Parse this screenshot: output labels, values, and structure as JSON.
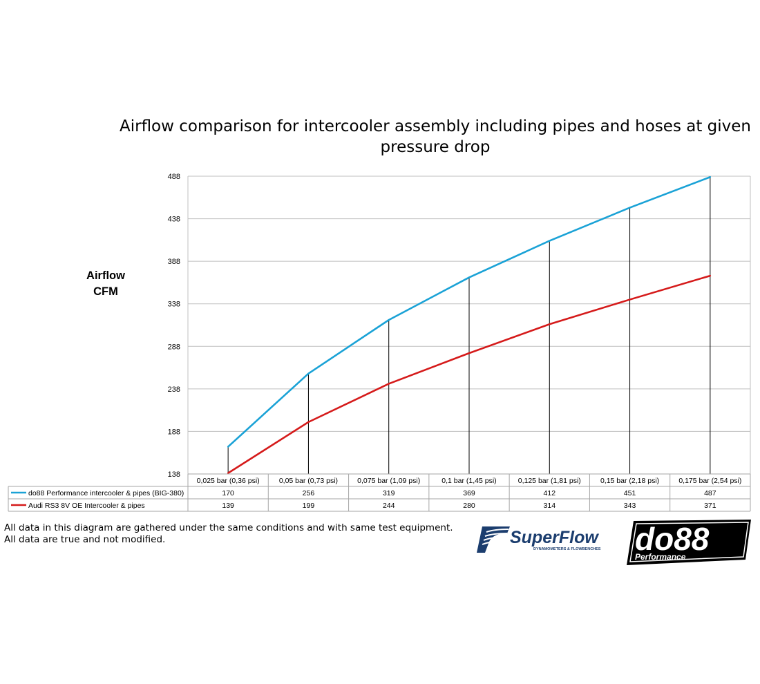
{
  "colors": {
    "do88": "#1aa2d6",
    "audi": "#d51a1a",
    "grid": "#bfbfbf"
  },
  "chart_data": {
    "type": "line",
    "title": "Airflow comparison for intercooler assembly including pipes and hoses at given pressure drop",
    "ylabel": "Airflow CFM",
    "ylabel_lines": [
      "Airflow",
      "CFM"
    ],
    "xlabel": "",
    "ylim": [
      138,
      488
    ],
    "yticks": [
      "488",
      "438",
      "388",
      "338",
      "288",
      "238",
      "188",
      "138"
    ],
    "categories": [
      "0,025 bar (0,36 psi)",
      "0,05 bar (0,73 psi)",
      "0,075 bar (1,09 psi)",
      "0,1 bar (1,45 psi)",
      "0,125 bar (1,81 psi)",
      "0,15 bar (2,18 psi)",
      "0,175 bar (2,54 psi)"
    ],
    "series": [
      {
        "name": "do88 Performance intercooler & pipes (BIG-380)",
        "values": [
          170,
          256,
          319,
          369,
          412,
          451,
          487
        ]
      },
      {
        "name": "Audi RS3 8V OE Intercooler & pipes",
        "values": [
          139,
          199,
          244,
          280,
          314,
          343,
          371
        ]
      }
    ],
    "grid": true,
    "legend": "data-table"
  },
  "footnote": [
    "All data in this diagram are gathered under the same conditions and with same test equipment.",
    "All data are true and not modified."
  ],
  "logos": {
    "superflow": {
      "name": "SuperFlow",
      "tagline": "DYNAMOMETERS & FLOWBENCHES"
    },
    "do88": {
      "name": "do88",
      "tagline": "Performance"
    }
  }
}
